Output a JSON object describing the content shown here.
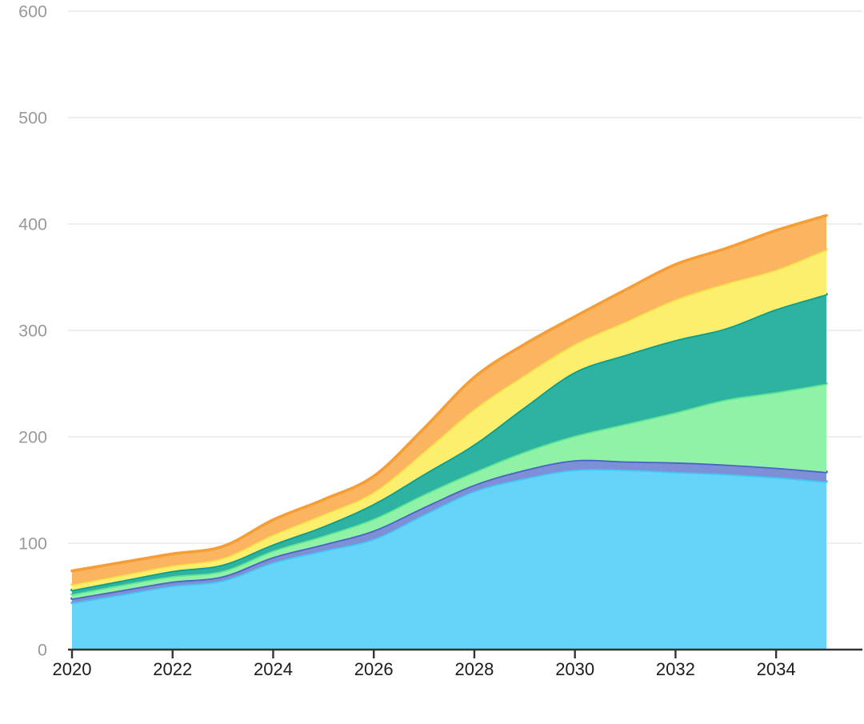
{
  "chart": {
    "background": "#ffffff",
    "grid_color": "#e8e8e8",
    "axis_line_color": "#333333"
  },
  "y_axis": {
    "labels": [
      "0",
      "100",
      "200",
      "300",
      "400",
      "500",
      "600"
    ],
    "tick_values": [
      0,
      100,
      200,
      300,
      400,
      500,
      600
    ],
    "label_color": "#999999"
  },
  "x_axis": {
    "labels": [
      "2020",
      "2022",
      "2024",
      "2026",
      "2028",
      "2030",
      "2032",
      "2034"
    ],
    "tick_years": [
      2020,
      2022,
      2024,
      2026,
      2028,
      2030,
      2032,
      2034
    ],
    "label_color": "#1c1c1c"
  },
  "chart_data": {
    "type": "area",
    "stacked": true,
    "smooth": true,
    "grid": true,
    "legend": false,
    "title": "",
    "xlabel": "",
    "ylabel": "",
    "ylim": [
      0,
      600
    ],
    "x": [
      2020,
      2021,
      2022,
      2023,
      2024,
      2025,
      2026,
      2027,
      2028,
      2029,
      2030,
      2031,
      2032,
      2033,
      2034,
      2035
    ],
    "series": [
      {
        "name": "sky-blue",
        "fill": "#66D4F8",
        "stroke": "#43C7F3",
        "values": [
          44,
          52,
          60,
          65,
          82,
          93,
          104,
          127,
          149,
          161,
          169,
          169,
          167,
          165,
          162,
          158
        ]
      },
      {
        "name": "indigo",
        "fill": "#7D8FD6",
        "stroke": "#4A63C4",
        "values": [
          4,
          4,
          4,
          4,
          5,
          6,
          8,
          7,
          6,
          8,
          9,
          8,
          9,
          9,
          9,
          9
        ]
      },
      {
        "name": "light-green",
        "fill": "#90F2A7",
        "stroke": "#60E591",
        "values": [
          4,
          5,
          5,
          5,
          6,
          8,
          11,
          12,
          12,
          17,
          23,
          35,
          47,
          61,
          71,
          83
        ]
      },
      {
        "name": "teal",
        "fill": "#2EB3A2",
        "stroke": "#0E9C8C",
        "values": [
          4,
          4,
          5,
          6,
          6,
          9,
          14,
          19,
          26,
          42,
          60,
          65,
          68,
          67,
          78,
          84
        ]
      },
      {
        "name": "yellow",
        "fill": "#FCEF6D",
        "stroke": "#F7E24A",
        "values": [
          5,
          5,
          5,
          6,
          9,
          11,
          11,
          21,
          33,
          30,
          26,
          31,
          38,
          42,
          37,
          42
        ]
      },
      {
        "name": "orange",
        "fill": "#FBB460",
        "stroke": "#F79D35",
        "values": [
          13,
          12,
          11,
          11,
          14,
          14,
          15,
          22,
          30,
          29,
          26,
          30,
          33,
          33,
          37,
          32
        ]
      }
    ]
  }
}
